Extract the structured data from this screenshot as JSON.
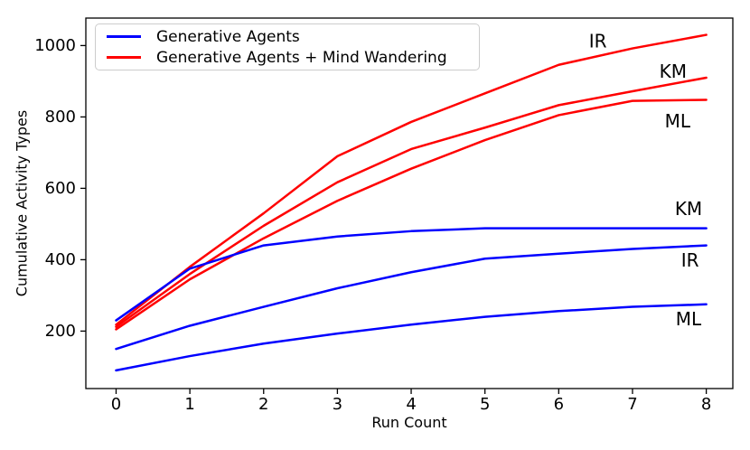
{
  "chart_data": {
    "type": "line",
    "title": "",
    "xlabel": "Run Count",
    "ylabel": "Cumulative Activity Types",
    "x": [
      0,
      1,
      2,
      3,
      4,
      5,
      6,
      7,
      8
    ],
    "xticks": [
      0,
      1,
      2,
      3,
      4,
      5,
      6,
      7,
      8
    ],
    "yticks": [
      200,
      400,
      600,
      800,
      1000
    ],
    "xlim": [
      -0.41,
      8.36
    ],
    "ylim": [
      39,
      1077
    ],
    "grid": false,
    "legend": {
      "position": "upper left",
      "entries": [
        {
          "label": "Generative Agents",
          "color": "#0000ff"
        },
        {
          "label": "Generative Agents + Mind Wandering",
          "color": "#ff0000"
        }
      ]
    },
    "series": [
      {
        "name": "mind-wandering-IR",
        "group": "Generative Agents + Mind Wandering",
        "label": "IR",
        "color": "#ff0000",
        "values": [
          218,
          380,
          530,
          690,
          786,
          866,
          946,
          992,
          1030
        ]
      },
      {
        "name": "mind-wandering-KM",
        "group": "Generative Agents + Mind Wandering",
        "label": "KM",
        "color": "#ff0000",
        "values": [
          212,
          360,
          495,
          617,
          710,
          770,
          833,
          872,
          910
        ]
      },
      {
        "name": "mind-wandering-ML",
        "group": "Generative Agents + Mind Wandering",
        "label": "ML",
        "color": "#ff0000",
        "values": [
          205,
          345,
          460,
          565,
          655,
          735,
          805,
          845,
          848
        ]
      },
      {
        "name": "generative-agents-KM",
        "group": "Generative Agents",
        "label": "KM",
        "color": "#0000ff",
        "values": [
          230,
          375,
          440,
          465,
          480,
          488,
          488,
          488,
          488
        ]
      },
      {
        "name": "generative-agents-IR",
        "group": "Generative Agents",
        "label": "IR",
        "color": "#0000ff",
        "values": [
          150,
          215,
          268,
          320,
          365,
          403,
          417,
          430,
          440
        ]
      },
      {
        "name": "generative-agents-ML",
        "group": "Generative Agents",
        "label": "ML",
        "color": "#0000ff",
        "values": [
          90,
          130,
          165,
          193,
          218,
          240,
          256,
          268,
          275
        ]
      }
    ],
    "annotations": [
      {
        "text": "IR",
        "x": 6.53,
        "y": 1013
      },
      {
        "text": "KM",
        "x": 7.55,
        "y": 927
      },
      {
        "text": "ML",
        "x": 7.61,
        "y": 788
      },
      {
        "text": "KM",
        "x": 7.76,
        "y": 543
      },
      {
        "text": "IR",
        "x": 7.78,
        "y": 398
      },
      {
        "text": "ML",
        "x": 7.76,
        "y": 234
      }
    ]
  },
  "colors": {
    "axis": "#000000",
    "tick_label": "#000000",
    "annotation": "#000000",
    "legend_border": "#cccccc"
  }
}
